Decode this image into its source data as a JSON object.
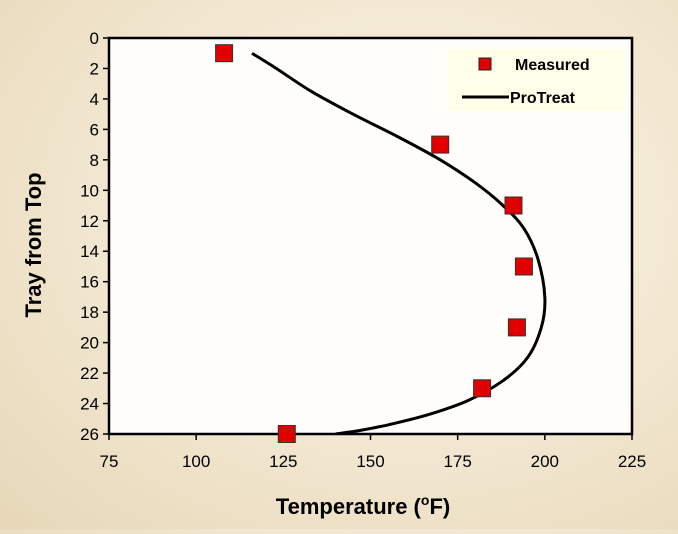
{
  "chart_data": {
    "type": "scatter",
    "xlabel": "Temperature (",
    "xlabel_sup": "o",
    "xlabel_end": "F)",
    "ylabel": "Tray from Top",
    "xlim": [
      75,
      225
    ],
    "ylim": [
      0,
      26
    ],
    "y_inverted": true,
    "x_ticks": [
      "75",
      "100",
      "125",
      "150",
      "175",
      "200",
      "225"
    ],
    "y_ticks": [
      "0",
      "2",
      "4",
      "6",
      "8",
      "10",
      "12",
      "14",
      "16",
      "18",
      "20",
      "22",
      "24",
      "26"
    ],
    "grid": false,
    "legend_position": "top-right",
    "series": [
      {
        "name": "Measured",
        "kind": "markers",
        "color": "#e00000",
        "x": [
          108,
          170,
          191,
          194,
          192,
          182,
          126
        ],
        "y": [
          1,
          7,
          11,
          15,
          19,
          23,
          26
        ]
      },
      {
        "name": "ProTreat",
        "kind": "line",
        "color": "#000000",
        "x": [
          116,
          123,
          133,
          145,
          158,
          170,
          180,
          188,
          194,
          198,
          200,
          199,
          195,
          188,
          178,
          167,
          155,
          146,
          140
        ],
        "y": [
          1,
          2,
          3.5,
          5,
          6.5,
          8,
          9.5,
          11,
          12.5,
          14.5,
          17,
          19,
          21,
          22.5,
          23.8,
          24.7,
          25.4,
          25.8,
          26
        ]
      }
    ]
  }
}
